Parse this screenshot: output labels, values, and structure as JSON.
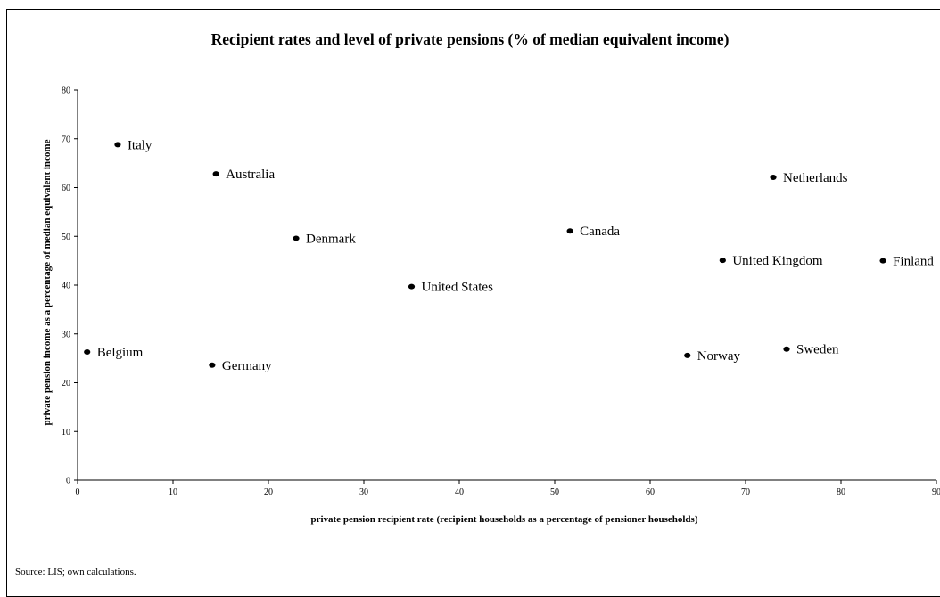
{
  "chart_data": {
    "type": "scatter",
    "title": "Recipient rates and level of private pensions (% of median equivalent income)",
    "xlabel": "private pension recipient rate (recipient households as a percentage of pensioner households)",
    "ylabel": "private pension income as a percentage of median equivalent income",
    "xlim": [
      0,
      90
    ],
    "ylim": [
      0,
      80
    ],
    "xticks": [
      0,
      10,
      20,
      30,
      40,
      50,
      60,
      70,
      80,
      90
    ],
    "yticks": [
      0,
      10,
      20,
      30,
      40,
      50,
      60,
      70,
      80
    ],
    "grid": false,
    "legend": "none",
    "points": [
      {
        "label": "Italy",
        "x": 4.2,
        "y": 68.8
      },
      {
        "label": "Australia",
        "x": 14.5,
        "y": 62.8
      },
      {
        "label": "Denmark",
        "x": 22.9,
        "y": 49.6
      },
      {
        "label": "United States",
        "x": 35.0,
        "y": 39.7
      },
      {
        "label": "Belgium",
        "x": 1.0,
        "y": 26.3
      },
      {
        "label": "Germany",
        "x": 14.1,
        "y": 23.6
      },
      {
        "label": "Canada",
        "x": 51.6,
        "y": 51.1
      },
      {
        "label": "Netherlands",
        "x": 72.9,
        "y": 62.1
      },
      {
        "label": "United Kingdom",
        "x": 67.6,
        "y": 45.1
      },
      {
        "label": "Finland",
        "x": 84.4,
        "y": 45.0
      },
      {
        "label": "Norway",
        "x": 63.9,
        "y": 25.6
      },
      {
        "label": "Sweden",
        "x": 74.3,
        "y": 26.9
      }
    ]
  },
  "source": "Source: LIS; own calculations."
}
